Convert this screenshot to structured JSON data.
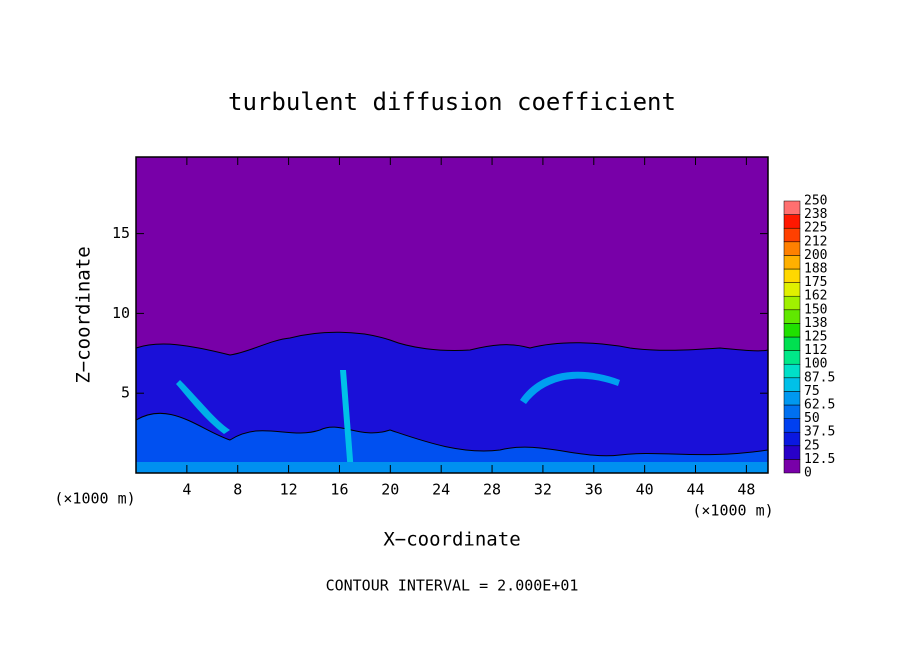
{
  "chart_data": {
    "type": "heatmap",
    "title": "turbulent diffusion coefficient",
    "x_label": "X−coordinate",
    "y_label": "Z−coordinate",
    "x_unit_label": "(×1000 m)",
    "y_unit_label": "(×1000 m)",
    "footer": "CONTOUR INTERVAL = 2.000E+01",
    "xlim": [
      0,
      49.7
    ],
    "xticks": [
      4,
      8,
      12,
      16,
      20,
      24,
      28,
      32,
      36,
      40,
      44,
      48
    ],
    "ylim": [
      0,
      19.8
    ],
    "yticks": [
      5,
      10,
      15
    ],
    "colorbar": {
      "lim": [
        0,
        250
      ],
      "ticks": [
        0,
        12.5,
        25,
        37.5,
        50,
        62.5,
        75,
        87.5,
        100,
        {
          "value": 112.5,
          "label": "112"
        },
        125,
        {
          "value": 137.5,
          "label": "138"
        },
        150,
        {
          "value": 162.5,
          "label": "162"
        },
        175,
        {
          "value": 187.5,
          "label": "188"
        },
        200,
        {
          "value": 212.5,
          "label": "212"
        },
        225,
        {
          "value": 237.5,
          "label": "238"
        },
        250
      ],
      "colors": [
        "#7800a8",
        "#2800c8",
        "#0a18e0",
        "#0040f0",
        "#0070f0",
        "#0098f0",
        "#00c0e8",
        "#00e0c8",
        "#00e888",
        "#00e050",
        "#20e000",
        "#60e800",
        "#a0f000",
        "#e0f000",
        "#ffd800",
        "#ffb000",
        "#ff8000",
        "#ff4000",
        "#ff1800",
        "#ff7070"
      ]
    }
  }
}
